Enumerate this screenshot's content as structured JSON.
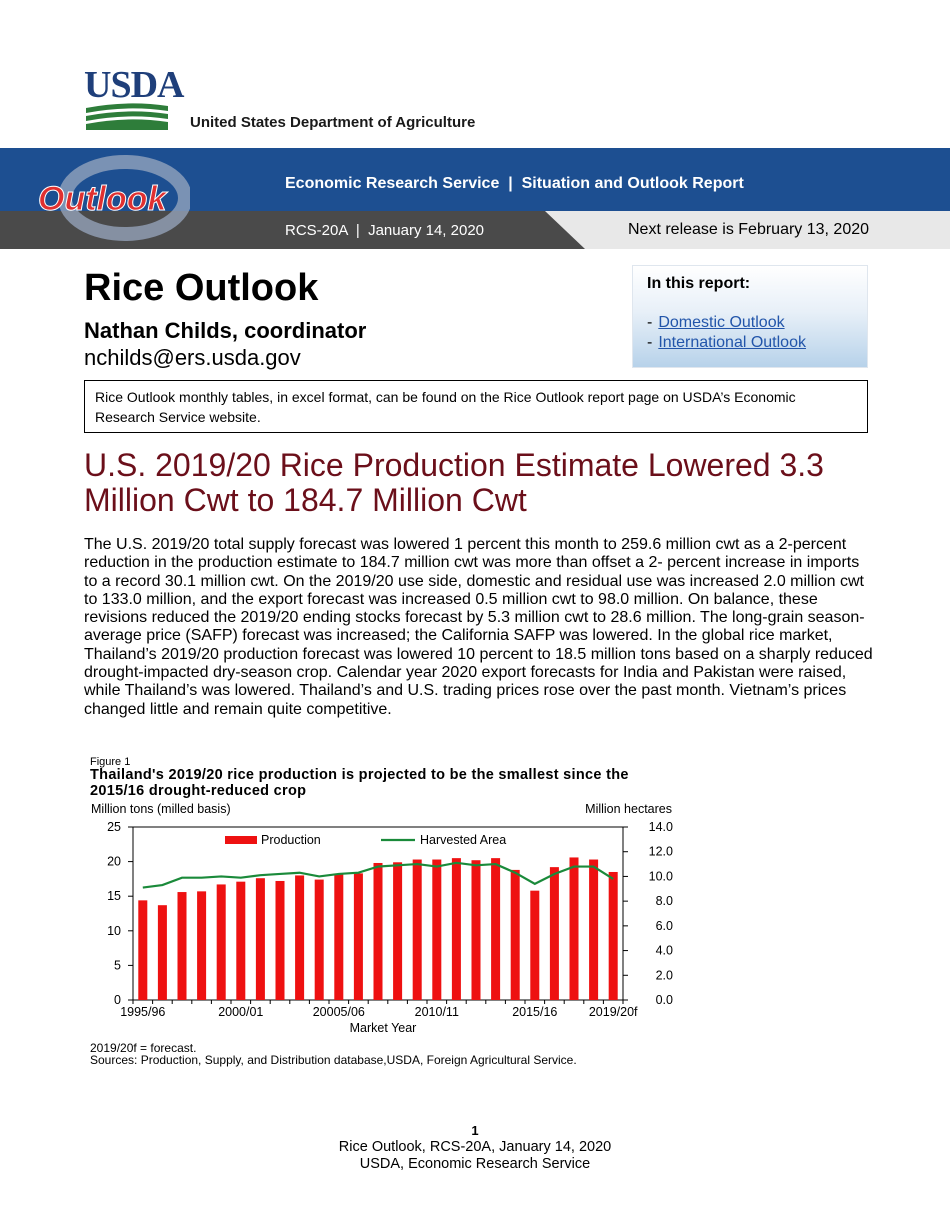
{
  "header": {
    "logo_text": "USDA",
    "department": "United States Department of Agriculture",
    "outlook_logo_text": "Outlook",
    "banner_title": "Economic Research Service  |  Situation and Outlook Report",
    "banner_sub": "RCS-20A  |  January 14, 2020",
    "next_release": "Next release is February 13, 2020",
    "colors": {
      "banner_blue": "#1d4f91",
      "banner_gray": "#4a4a4a",
      "headline": "#6b0f1a",
      "bar_red": "#ee1111",
      "line_green": "#1a8a3a"
    }
  },
  "title_block": {
    "title": "Rice Outlook",
    "coordinator": "Nathan Childs, coordinator",
    "email": "nchilds@ers.usda.gov"
  },
  "in_report": {
    "title": "In this report:",
    "items": [
      {
        "dash": "-",
        "label": "Domestic Outlook"
      },
      {
        "dash": "-",
        "label": "International Outlook"
      }
    ]
  },
  "tables_note": "Rice Outlook monthly tables, in excel format, can be found on the Rice Outlook report page on USDA’s Economic Research Service website.",
  "headline": "U.S. 2019/20 Rice Production Estimate Lowered 3.3 Million Cwt to 184.7 Million Cwt",
  "body": "The U.S. 2019/20 total supply forecast was lowered 1 percent this month to 259.6 million cwt as a 2-percent reduction in the production estimate to 184.7 million cwt was more than offset a 2- percent increase in imports to a record 30.1 million cwt. On the 2019/20 use side, domestic and residual use was increased 2.0 million cwt to 133.0 million, and the export forecast was increased 0.5 million cwt to 98.0 million. On balance, these revisions reduced the 2019/20 ending stocks forecast by 5.3 million cwt to 28.6 million. The long-grain season-average price (SAFP) forecast was increased; the California SAFP was lowered.  In the global rice market, Thailand’s 2019/20 production forecast was lowered 10 percent to 18.5 million tons based on a sharply reduced drought-impacted dry-season crop. Calendar year 2020 export forecasts for India and Pakistan were raised, while Thailand’s was lowered. Thailand’s and U.S. trading prices rose over the past month. Vietnam’s prices changed little and remain quite competitive.",
  "figure": {
    "label": "Figure 1",
    "title": "Thailand's 2019/20 rice production is projected to be the smallest since the 2015/16 drought-reduced crop",
    "note": "2019/20f = forecast.",
    "sources": "Sources: Production, Supply, and Distribution database,USDA, Foreign Agricultural Service."
  },
  "chart_data": {
    "type": "bar",
    "title": "Thailand's 2019/20 rice production is projected to be the smallest since the 2015/16 drought-reduced crop",
    "xlabel": "Market Year",
    "ylabel": "Million tons (milled basis)",
    "y2label": "Million hectares",
    "ylim": [
      0,
      25
    ],
    "y2lim": [
      0,
      14
    ],
    "yticks": [
      "0",
      "5",
      "10",
      "15",
      "20",
      "25"
    ],
    "y2ticks": [
      "0.0",
      "2.0",
      "4.0",
      "6.0",
      "8.0",
      "10.0",
      "12.0",
      "14.0"
    ],
    "xtick_labels": [
      "1995/96",
      "2000/01",
      "20005/06",
      "2010/11",
      "2015/16",
      "2019/20f"
    ],
    "categories": [
      "1995/96",
      "1996/97",
      "1997/98",
      "1998/99",
      "1999/00",
      "2000/01",
      "2001/02",
      "2002/03",
      "2003/04",
      "2004/05",
      "2005/06",
      "2006/07",
      "2007/08",
      "2008/09",
      "2009/10",
      "2010/11",
      "2011/12",
      "2012/13",
      "2013/14",
      "2014/15",
      "2015/16",
      "2016/17",
      "2017/18",
      "2018/19",
      "2019/20f"
    ],
    "series": [
      {
        "name": "Production",
        "type": "bar",
        "axis": "left",
        "values": [
          14.4,
          13.7,
          15.6,
          15.7,
          16.7,
          17.1,
          17.6,
          17.2,
          18.0,
          17.4,
          18.2,
          18.3,
          19.8,
          19.9,
          20.3,
          20.3,
          20.5,
          20.2,
          20.5,
          18.8,
          15.8,
          19.2,
          20.6,
          20.3,
          18.5
        ]
      },
      {
        "name": "Harvested Area",
        "type": "line",
        "axis": "right",
        "values": [
          9.1,
          9.3,
          9.9,
          9.9,
          10.0,
          9.9,
          10.1,
          10.2,
          10.3,
          10.0,
          10.2,
          10.3,
          10.8,
          10.9,
          11.0,
          10.8,
          11.1,
          10.9,
          11.0,
          10.3,
          9.4,
          10.2,
          10.8,
          10.8,
          9.8
        ]
      }
    ],
    "legend": "top-center"
  },
  "footer": {
    "page": "1",
    "line1": "Rice Outlook, RCS-20A, January 14, 2020",
    "line2": "USDA, Economic Research Service"
  }
}
